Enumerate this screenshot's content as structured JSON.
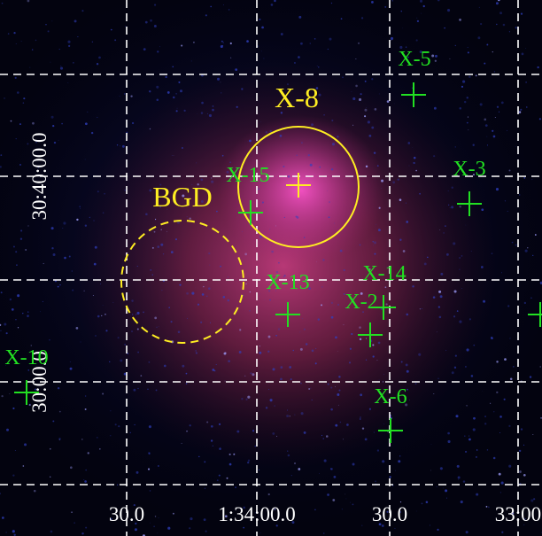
{
  "image": {
    "regions": [
      {
        "label": "X-8"
      },
      {
        "label": "BGD"
      }
    ],
    "sources": [
      {
        "label": "X-5"
      },
      {
        "label": "X-15"
      },
      {
        "label": "X-3"
      },
      {
        "label": "X-13"
      },
      {
        "label": "X-14"
      },
      {
        "label": "X-2"
      },
      {
        "label": "X-6"
      },
      {
        "label": "X-10"
      }
    ],
    "ra_ticks": [
      "30.0",
      "1:34:00.0",
      "30.0",
      "33:00"
    ],
    "dec_ticks": [
      "30:40:00.0",
      "30:00.0"
    ]
  }
}
